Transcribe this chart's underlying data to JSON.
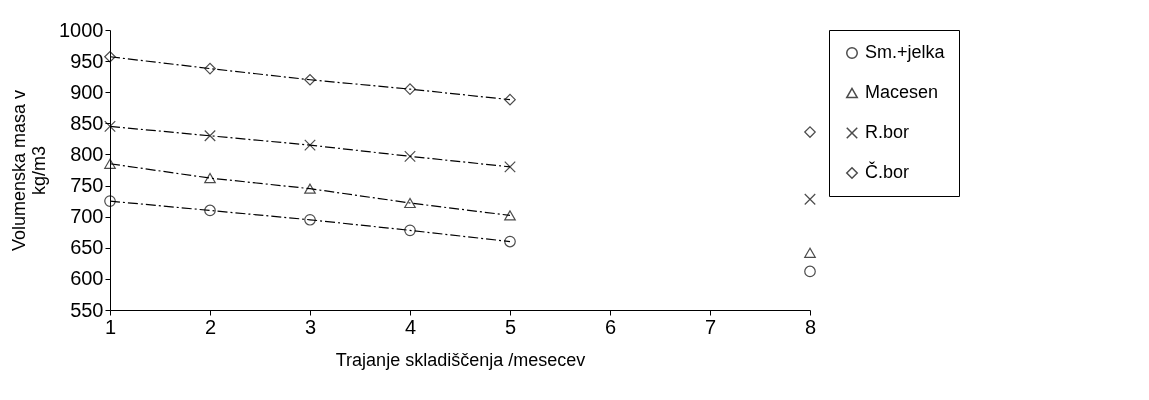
{
  "chart_data": {
    "type": "line",
    "xlabel": "Trajanje skladiščenja /mesecev",
    "ylabel": "Volumenska masa v\nkg/m3",
    "x": [
      1,
      2,
      3,
      4,
      5,
      6,
      7,
      8
    ],
    "xlim": [
      1,
      8
    ],
    "xticks": [
      1,
      2,
      3,
      4,
      5,
      6,
      7,
      8
    ],
    "ylim": [
      550,
      1000
    ],
    "yticks": [
      550,
      600,
      650,
      700,
      750,
      800,
      850,
      900,
      950,
      1000
    ],
    "grid": false,
    "legend": "right",
    "line_style": "dashed",
    "series": [
      {
        "name": "Sm.+jelka",
        "color": "#000000",
        "marker": "circle",
        "values": [
          725,
          710,
          695,
          678,
          660,
          null,
          null,
          612
        ]
      },
      {
        "name": "Macesen",
        "color": "#000000",
        "marker": "triangle",
        "values": [
          785,
          762,
          745,
          722,
          702,
          null,
          null,
          642
        ]
      },
      {
        "name": "R.bor",
        "color": "#000000",
        "marker": "cross",
        "values": [
          845,
          830,
          815,
          797,
          780,
          null,
          null,
          728
        ]
      },
      {
        "name": "Č.bor",
        "color": "#000000",
        "marker": "diamond",
        "values": [
          957,
          938,
          920,
          905,
          888,
          null,
          null,
          836
        ]
      }
    ]
  }
}
